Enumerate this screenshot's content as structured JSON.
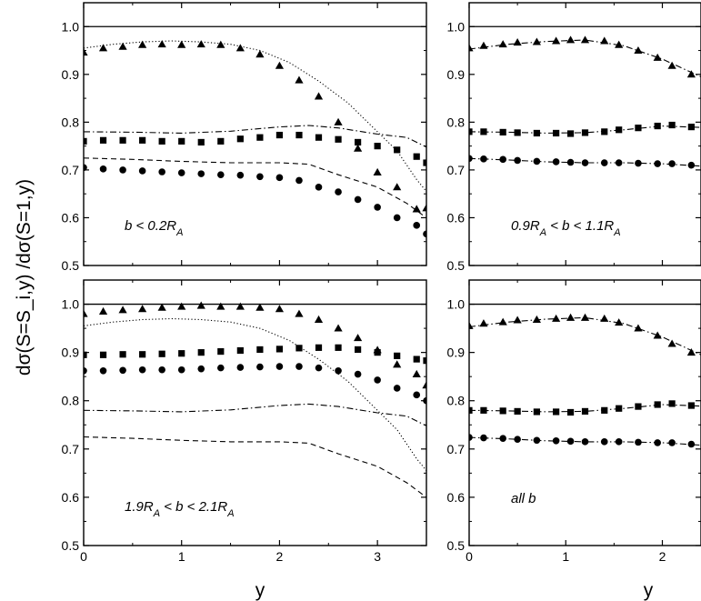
{
  "chart_data": {
    "type": "scatter",
    "title": "",
    "ylabel": "dσ(S=S_i,y) /dσ(S=1,y)",
    "xlabel": "y",
    "grid": false,
    "panels": [
      {
        "annotation": "b < 0.2R_A",
        "xlim": [
          0,
          3.5
        ],
        "ylim": [
          0.5,
          1.05
        ],
        "xticks": [
          0,
          1,
          2,
          3
        ],
        "yticks": [
          0.5,
          0.6,
          0.7,
          0.8,
          0.9,
          1.0
        ],
        "series": [
          {
            "name": "triangles",
            "marker": "triangle",
            "x": [
              0,
              0.2,
              0.4,
              0.6,
              0.8,
              1.0,
              1.2,
              1.4,
              1.6,
              1.8,
              2.0,
              2.2,
              2.4,
              2.6,
              2.8,
              3.0,
              3.2,
              3.4,
              3.5
            ],
            "y": [
              0.946,
              0.955,
              0.958,
              0.962,
              0.963,
              0.962,
              0.963,
              0.962,
              0.955,
              0.942,
              0.918,
              0.888,
              0.854,
              0.8,
              0.745,
              0.695,
              0.664,
              0.618,
              0.62
            ]
          },
          {
            "name": "squares",
            "marker": "square",
            "x": [
              0,
              0.2,
              0.4,
              0.6,
              0.8,
              1.0,
              1.2,
              1.4,
              1.6,
              1.8,
              2.0,
              2.2,
              2.4,
              2.6,
              2.8,
              3.0,
              3.2,
              3.4,
              3.5
            ],
            "y": [
              0.76,
              0.762,
              0.762,
              0.762,
              0.76,
              0.76,
              0.758,
              0.76,
              0.765,
              0.768,
              0.773,
              0.773,
              0.768,
              0.764,
              0.758,
              0.75,
              0.742,
              0.728,
              0.715
            ]
          },
          {
            "name": "circles",
            "marker": "circle",
            "x": [
              0,
              0.2,
              0.4,
              0.6,
              0.8,
              1.0,
              1.2,
              1.4,
              1.6,
              1.8,
              2.0,
              2.2,
              2.4,
              2.6,
              2.8,
              3.0,
              3.2,
              3.4,
              3.5
            ],
            "y": [
              0.705,
              0.702,
              0.7,
              0.698,
              0.696,
              0.694,
              0.692,
              0.69,
              0.689,
              0.686,
              0.684,
              0.678,
              0.664,
              0.654,
              0.638,
              0.622,
              0.6,
              0.584,
              0.566
            ]
          },
          {
            "name": "dotted line",
            "line": "dotted",
            "x": [
              0,
              0.3,
              0.6,
              0.9,
              1.2,
              1.5,
              1.8,
              2.1,
              2.4,
              2.7,
              3.0,
              3.2,
              3.4,
              3.5
            ],
            "y": [
              0.955,
              0.963,
              0.968,
              0.97,
              0.968,
              0.963,
              0.95,
              0.925,
              0.886,
              0.84,
              0.78,
              0.74,
              0.68,
              0.655
            ]
          },
          {
            "name": "dash-dot line",
            "line": "dashdot",
            "x": [
              0,
              0.5,
              1.0,
              1.5,
              2.0,
              2.3,
              2.6,
              3.0,
              3.3,
              3.5
            ],
            "y": [
              0.78,
              0.779,
              0.777,
              0.781,
              0.79,
              0.793,
              0.788,
              0.775,
              0.768,
              0.748
            ]
          },
          {
            "name": "dashed line",
            "line": "dashed",
            "x": [
              0,
              0.5,
              1.0,
              1.5,
              2.0,
              2.3,
              2.6,
              3.0,
              3.3,
              3.5
            ],
            "y": [
              0.725,
              0.722,
              0.718,
              0.715,
              0.715,
              0.712,
              0.69,
              0.664,
              0.63,
              0.6
            ]
          }
        ]
      },
      {
        "annotation": "0.9R_A < b < 1.1R_A",
        "xlim": [
          0,
          2.4
        ],
        "ylim": [
          0.5,
          1.05
        ],
        "xticks": [
          0,
          1,
          2
        ],
        "yticks": [
          0.5,
          0.6,
          0.7,
          0.8,
          0.9,
          1.0
        ],
        "series": [
          {
            "name": "triangles",
            "marker": "triangle",
            "x": [
              0,
              0.15,
              0.35,
              0.5,
              0.7,
              0.9,
              1.05,
              1.2,
              1.4,
              1.55,
              1.75,
              1.95,
              2.1,
              2.3
            ],
            "y": [
              0.955,
              0.96,
              0.963,
              0.967,
              0.968,
              0.97,
              0.972,
              0.972,
              0.97,
              0.962,
              0.95,
              0.935,
              0.918,
              0.9
            ]
          },
          {
            "name": "squares",
            "marker": "square",
            "x": [
              0,
              0.15,
              0.35,
              0.5,
              0.7,
              0.9,
              1.05,
              1.2,
              1.4,
              1.55,
              1.75,
              1.95,
              2.1,
              2.3
            ],
            "y": [
              0.78,
              0.78,
              0.779,
              0.778,
              0.777,
              0.777,
              0.776,
              0.778,
              0.78,
              0.784,
              0.788,
              0.792,
              0.794,
              0.79
            ]
          },
          {
            "name": "circles",
            "marker": "circle",
            "x": [
              0,
              0.15,
              0.35,
              0.5,
              0.7,
              0.9,
              1.05,
              1.2,
              1.4,
              1.55,
              1.75,
              1.95,
              2.1,
              2.3
            ],
            "y": [
              0.724,
              0.723,
              0.722,
              0.72,
              0.718,
              0.717,
              0.716,
              0.715,
              0.715,
              0.715,
              0.714,
              0.713,
              0.713,
              0.71
            ]
          },
          {
            "name": "dash-dot through triangles",
            "line": "dashdot",
            "x": [
              0,
              0.4,
              0.8,
              1.2,
              1.6,
              2.0,
              2.4
            ],
            "y": [
              0.953,
              0.963,
              0.969,
              0.972,
              0.96,
              0.932,
              0.895
            ]
          },
          {
            "name": "dash-dot through squares",
            "line": "dashdot",
            "x": [
              0,
              0.4,
              0.8,
              1.2,
              1.6,
              2.0,
              2.4
            ],
            "y": [
              0.78,
              0.779,
              0.777,
              0.778,
              0.784,
              0.792,
              0.789
            ]
          },
          {
            "name": "dash-dot through circles",
            "line": "dashdot",
            "x": [
              0,
              0.4,
              0.8,
              1.2,
              1.6,
              2.0,
              2.4
            ],
            "y": [
              0.724,
              0.721,
              0.717,
              0.715,
              0.715,
              0.713,
              0.708
            ]
          }
        ]
      },
      {
        "annotation": "1.9R_A < b < 2.1R_A",
        "xlim": [
          0,
          3.5
        ],
        "ylim": [
          0.5,
          1.05
        ],
        "xticks": [
          0,
          1,
          2,
          3
        ],
        "yticks": [
          0.5,
          0.6,
          0.7,
          0.8,
          0.9,
          1.0
        ],
        "series": [
          {
            "name": "triangles",
            "marker": "triangle",
            "x": [
              0,
              0.2,
              0.4,
              0.6,
              0.8,
              1.0,
              1.2,
              1.4,
              1.6,
              1.8,
              2.0,
              2.2,
              2.4,
              2.6,
              2.8,
              3.0,
              3.2,
              3.4,
              3.5
            ],
            "y": [
              0.98,
              0.985,
              0.988,
              0.99,
              0.993,
              0.995,
              0.997,
              0.995,
              0.995,
              0.993,
              0.99,
              0.98,
              0.968,
              0.95,
              0.93,
              0.905,
              0.875,
              0.855,
              0.832
            ]
          },
          {
            "name": "squares",
            "marker": "square",
            "x": [
              0,
              0.2,
              0.4,
              0.6,
              0.8,
              1.0,
              1.2,
              1.4,
              1.6,
              1.8,
              2.0,
              2.2,
              2.4,
              2.6,
              2.8,
              3.0,
              3.2,
              3.4,
              3.5
            ],
            "y": [
              0.895,
              0.895,
              0.896,
              0.896,
              0.897,
              0.898,
              0.9,
              0.902,
              0.904,
              0.906,
              0.907,
              0.909,
              0.91,
              0.91,
              0.906,
              0.9,
              0.893,
              0.886,
              0.883
            ]
          },
          {
            "name": "circles",
            "marker": "circle",
            "x": [
              0,
              0.2,
              0.4,
              0.6,
              0.8,
              1.0,
              1.2,
              1.4,
              1.6,
              1.8,
              2.0,
              2.2,
              2.4,
              2.6,
              2.8,
              3.0,
              3.2,
              3.4,
              3.5
            ],
            "y": [
              0.862,
              0.862,
              0.863,
              0.864,
              0.864,
              0.864,
              0.866,
              0.868,
              0.869,
              0.87,
              0.871,
              0.871,
              0.868,
              0.862,
              0.855,
              0.843,
              0.826,
              0.812,
              0.8
            ]
          },
          {
            "name": "dotted line",
            "line": "dotted",
            "x": [
              0,
              0.3,
              0.6,
              0.9,
              1.2,
              1.5,
              1.8,
              2.1,
              2.4,
              2.7,
              3.0,
              3.2,
              3.4,
              3.5
            ],
            "y": [
              0.955,
              0.963,
              0.968,
              0.97,
              0.968,
              0.963,
              0.95,
              0.925,
              0.886,
              0.84,
              0.78,
              0.74,
              0.68,
              0.655
            ]
          },
          {
            "name": "dash-dot line",
            "line": "dashdot",
            "x": [
              0,
              0.5,
              1.0,
              1.5,
              2.0,
              2.3,
              2.6,
              3.0,
              3.3,
              3.5
            ],
            "y": [
              0.78,
              0.779,
              0.777,
              0.781,
              0.79,
              0.793,
              0.788,
              0.775,
              0.768,
              0.748
            ]
          },
          {
            "name": "dashed line",
            "line": "dashed",
            "x": [
              0,
              0.5,
              1.0,
              1.5,
              2.0,
              2.3,
              2.6,
              3.0,
              3.3,
              3.5
            ],
            "y": [
              0.725,
              0.722,
              0.718,
              0.715,
              0.715,
              0.712,
              0.69,
              0.664,
              0.63,
              0.6
            ]
          }
        ]
      },
      {
        "annotation": "all b",
        "xlim": [
          0,
          2.4
        ],
        "ylim": [
          0.5,
          1.05
        ],
        "xticks": [
          0,
          1,
          2
        ],
        "yticks": [
          0.5,
          0.6,
          0.7,
          0.8,
          0.9,
          1.0
        ],
        "series": [
          {
            "name": "triangles",
            "marker": "triangle",
            "x": [
              0,
              0.15,
              0.35,
              0.5,
              0.7,
              0.9,
              1.05,
              1.2,
              1.4,
              1.55,
              1.75,
              1.95,
              2.1,
              2.3
            ],
            "y": [
              0.955,
              0.96,
              0.963,
              0.967,
              0.968,
              0.97,
              0.972,
              0.972,
              0.97,
              0.962,
              0.95,
              0.935,
              0.918,
              0.9
            ]
          },
          {
            "name": "squares",
            "marker": "square",
            "x": [
              0,
              0.15,
              0.35,
              0.5,
              0.7,
              0.9,
              1.05,
              1.2,
              1.4,
              1.55,
              1.75,
              1.95,
              2.1,
              2.3
            ],
            "y": [
              0.78,
              0.78,
              0.779,
              0.778,
              0.777,
              0.777,
              0.776,
              0.778,
              0.78,
              0.784,
              0.788,
              0.792,
              0.794,
              0.79
            ]
          },
          {
            "name": "circles",
            "marker": "circle",
            "x": [
              0,
              0.15,
              0.35,
              0.5,
              0.7,
              0.9,
              1.05,
              1.2,
              1.4,
              1.55,
              1.75,
              1.95,
              2.1,
              2.3
            ],
            "y": [
              0.724,
              0.723,
              0.722,
              0.72,
              0.718,
              0.717,
              0.716,
              0.715,
              0.715,
              0.715,
              0.714,
              0.713,
              0.713,
              0.71
            ]
          },
          {
            "name": "dash-dot through triangles",
            "line": "dashdot",
            "x": [
              0,
              0.4,
              0.8,
              1.2,
              1.6,
              2.0,
              2.4
            ],
            "y": [
              0.953,
              0.963,
              0.969,
              0.972,
              0.96,
              0.932,
              0.895
            ]
          },
          {
            "name": "dash-dot through squares",
            "line": "dashdot",
            "x": [
              0,
              0.4,
              0.8,
              1.2,
              1.6,
              2.0,
              2.4
            ],
            "y": [
              0.78,
              0.779,
              0.777,
              0.778,
              0.784,
              0.792,
              0.789
            ]
          },
          {
            "name": "dash-dot through circles",
            "line": "dashdot",
            "x": [
              0,
              0.4,
              0.8,
              1.2,
              1.6,
              2.0,
              2.4
            ],
            "y": [
              0.724,
              0.721,
              0.717,
              0.715,
              0.715,
              0.713,
              0.708
            ]
          }
        ]
      }
    ],
    "reference_line": {
      "y": 1.0,
      "style": "solid"
    }
  }
}
